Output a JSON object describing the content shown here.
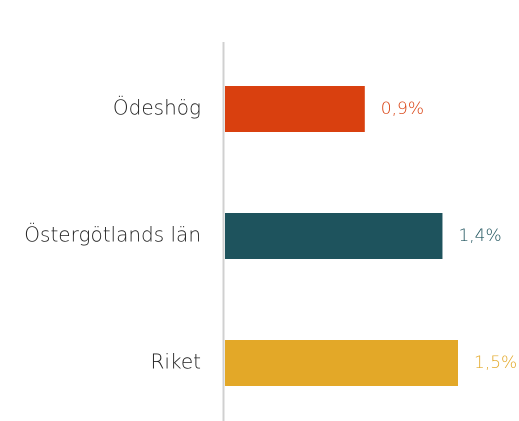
{
  "chart_data": {
    "type": "bar",
    "orientation": "horizontal",
    "categories": [
      "Ödeshög",
      "Östergötlands län",
      "Riket"
    ],
    "values": [
      0.9,
      1.4,
      1.5
    ],
    "value_labels": [
      "0,9%",
      "1,4%",
      "1,5%"
    ],
    "colors": [
      "#d9400f",
      "#1e535d",
      "#e3a828"
    ]
  }
}
